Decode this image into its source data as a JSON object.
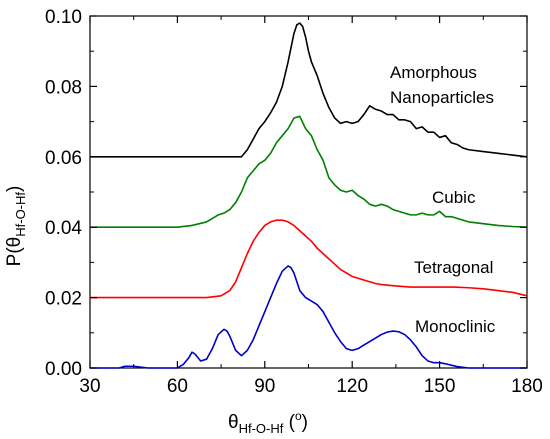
{
  "chart_data": {
    "type": "line",
    "xlabel_main": "θ",
    "xlabel_sub": "Hf-O-Hf",
    "xlabel_unit_open": " (",
    "xlabel_unit_sup": "o",
    "xlabel_unit_close": ")",
    "ylabel_main": "P(θ",
    "ylabel_sub": "Hf-O-Hf",
    "ylabel_close": ")",
    "xlim": [
      30,
      180
    ],
    "ylim": [
      0,
      0.1
    ],
    "xticks": [
      30,
      60,
      90,
      120,
      150,
      180
    ],
    "yticks": [
      0,
      0.02,
      0.04,
      0.06,
      0.08,
      0.1
    ],
    "xtick_labels": [
      "30",
      "60",
      "90",
      "120",
      "150",
      "180"
    ],
    "ytick_labels": [
      "0.00",
      "0.02",
      "0.04",
      "0.06",
      "0.08",
      "0.10"
    ],
    "grid": false,
    "series": [
      {
        "key": "monoclinic",
        "color": "#0000cc",
        "x": [
          30,
          40,
          42,
          45,
          50,
          55,
          60,
          62,
          64,
          65,
          66,
          68,
          70,
          72,
          74,
          76,
          77,
          78,
          80,
          82,
          84,
          86,
          88,
          90,
          92,
          94,
          96,
          98,
          99,
          100,
          102,
          104,
          106,
          108,
          110,
          112,
          114,
          116,
          118,
          120,
          122,
          124,
          126,
          128,
          130,
          132,
          134,
          136,
          138,
          140,
          142,
          144,
          146,
          148,
          150,
          152,
          154,
          156,
          158,
          160,
          165,
          170,
          180
        ],
        "y": [
          0,
          0,
          0.0005,
          0.0005,
          0,
          0,
          0,
          0.001,
          0.003,
          0.0045,
          0.004,
          0.002,
          0.0025,
          0.0055,
          0.0095,
          0.011,
          0.0105,
          0.009,
          0.005,
          0.0035,
          0.005,
          0.008,
          0.012,
          0.016,
          0.02,
          0.024,
          0.0275,
          0.029,
          0.0285,
          0.027,
          0.022,
          0.02,
          0.019,
          0.018,
          0.016,
          0.013,
          0.01,
          0.0075,
          0.0055,
          0.005,
          0.0055,
          0.0065,
          0.0075,
          0.0085,
          0.0095,
          0.0102,
          0.0105,
          0.0103,
          0.0095,
          0.008,
          0.006,
          0.0035,
          0.002,
          0.0015,
          0.0015,
          0.0012,
          0.0008,
          0.0004,
          0.0002,
          0,
          0,
          0,
          0
        ]
      },
      {
        "key": "tetragonal",
        "color": "#ff0000",
        "x": [
          30,
          70,
          75,
          78,
          80,
          82,
          84,
          86,
          88,
          90,
          92,
          94,
          96,
          98,
          100,
          102,
          104,
          106,
          108,
          110,
          112,
          114,
          116,
          118,
          120,
          122,
          124,
          126,
          128,
          130,
          135,
          140,
          145,
          150,
          155,
          160,
          165,
          170,
          175,
          180
        ],
        "y": [
          0.02,
          0.02,
          0.0205,
          0.022,
          0.0245,
          0.0285,
          0.0325,
          0.036,
          0.0385,
          0.0405,
          0.0415,
          0.042,
          0.042,
          0.0415,
          0.0405,
          0.039,
          0.0375,
          0.036,
          0.034,
          0.0325,
          0.031,
          0.0295,
          0.028,
          0.027,
          0.026,
          0.0255,
          0.025,
          0.0245,
          0.024,
          0.0237,
          0.0233,
          0.023,
          0.023,
          0.023,
          0.023,
          0.0228,
          0.0225,
          0.022,
          0.0215,
          0.0205
        ]
      },
      {
        "key": "cubic",
        "color": "#008000",
        "x": [
          30,
          60,
          65,
          70,
          72,
          74,
          76,
          78,
          80,
          82,
          84,
          86,
          88,
          90,
          92,
          94,
          96,
          98,
          100,
          102,
          104,
          106,
          108,
          110,
          112,
          114,
          116,
          118,
          120,
          122,
          124,
          126,
          128,
          130,
          132,
          134,
          136,
          138,
          140,
          142,
          144,
          146,
          148,
          150,
          152,
          154,
          156,
          158,
          160,
          165,
          170,
          175,
          180
        ],
        "y": [
          0.04,
          0.04,
          0.0405,
          0.0415,
          0.0425,
          0.0435,
          0.044,
          0.045,
          0.047,
          0.05,
          0.054,
          0.056,
          0.058,
          0.059,
          0.061,
          0.064,
          0.066,
          0.068,
          0.071,
          0.0715,
          0.068,
          0.066,
          0.062,
          0.059,
          0.054,
          0.052,
          0.0505,
          0.05,
          0.0505,
          0.049,
          0.048,
          0.0465,
          0.046,
          0.0465,
          0.046,
          0.045,
          0.0445,
          0.044,
          0.0435,
          0.0435,
          0.044,
          0.0435,
          0.0435,
          0.0445,
          0.043,
          0.043,
          0.0425,
          0.042,
          0.0415,
          0.041,
          0.0405,
          0.0402,
          0.04
        ]
      },
      {
        "key": "amorphous",
        "color": "#000000",
        "x": [
          30,
          80,
          82,
          84,
          86,
          88,
          90,
          92,
          94,
          96,
          98,
          99,
          100,
          101,
          102,
          103,
          104,
          105,
          106,
          108,
          110,
          112,
          114,
          116,
          118,
          120,
          122,
          124,
          126,
          128,
          130,
          132,
          134,
          136,
          138,
          140,
          142,
          144,
          146,
          148,
          150,
          152,
          154,
          156,
          158,
          160,
          165,
          170,
          175,
          180
        ],
        "y": [
          0.06,
          0.06,
          0.06,
          0.062,
          0.065,
          0.068,
          0.07,
          0.0725,
          0.0755,
          0.08,
          0.087,
          0.091,
          0.095,
          0.0975,
          0.098,
          0.097,
          0.094,
          0.09,
          0.087,
          0.083,
          0.078,
          0.074,
          0.071,
          0.0695,
          0.07,
          0.0695,
          0.07,
          0.072,
          0.0745,
          0.0735,
          0.073,
          0.072,
          0.072,
          0.0705,
          0.0705,
          0.07,
          0.068,
          0.0685,
          0.067,
          0.067,
          0.0655,
          0.066,
          0.064,
          0.0635,
          0.0625,
          0.062,
          0.0615,
          0.061,
          0.0605,
          0.06
        ]
      }
    ],
    "annotations": {
      "amorphous_line1": "Amorphous",
      "amorphous_line2": "Nanoparticles",
      "cubic": "Cubic",
      "tetragonal": "Tetragonal",
      "monoclinic": "Monoclinic"
    }
  }
}
